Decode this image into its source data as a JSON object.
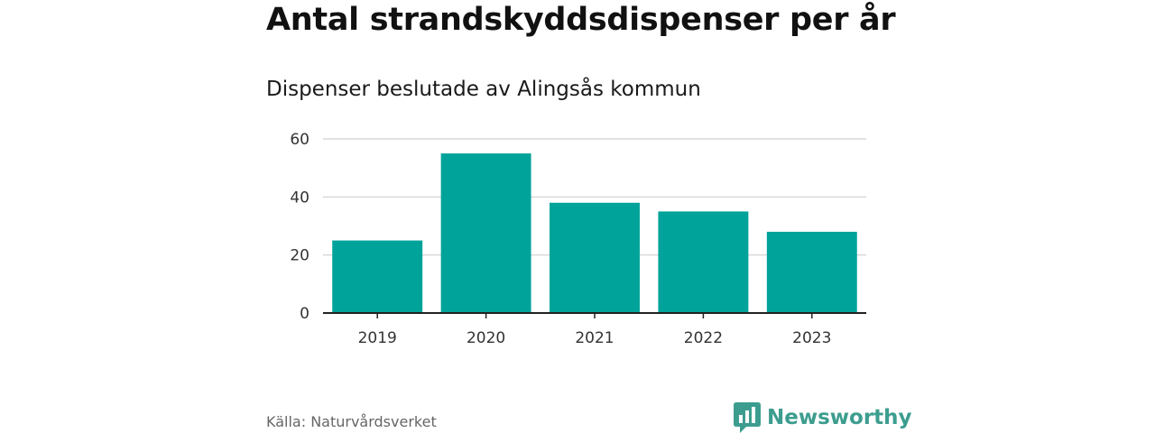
{
  "title": "Antal strandskyddsdispenser per år",
  "subtitle": "Dispenser beslutade av Alingsås kommun",
  "source": "Källa: Naturvårdsverket",
  "brand": {
    "name": "Newsworthy",
    "logo_icon": "bar-chart-speech-bubble-icon",
    "color": "#3c9d8f"
  },
  "chart_data": {
    "type": "bar",
    "categories": [
      "2019",
      "2020",
      "2021",
      "2022",
      "2023"
    ],
    "values": [
      25,
      55,
      38,
      35,
      28
    ],
    "ylim": [
      0,
      60
    ],
    "yticks": [
      0,
      20,
      40,
      60
    ],
    "xlabel": "",
    "ylabel": "",
    "grid": true,
    "legend": "none",
    "bar_color": "#00a39a"
  }
}
